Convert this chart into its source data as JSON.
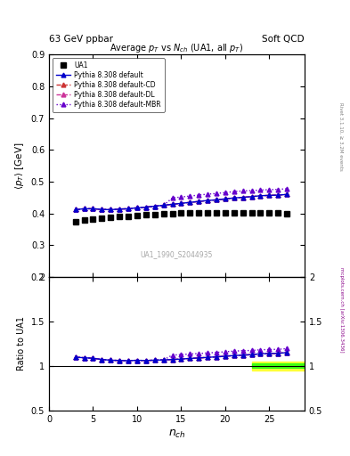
{
  "title_top": "63 GeV ppbar",
  "title_top_right": "Soft QCD",
  "plot_title": "Average $p_T$ vs $N_{ch}$ (UA1, all $p_T$)",
  "xlabel": "$n_{ch}$",
  "ylabel_main": "$\\langle p_T \\rangle$ [GeV]",
  "ylabel_ratio": "Ratio to UA1",
  "watermark": "UA1_1990_S2044935",
  "right_label_top": "Rivet 3.1.10, ≥ 3.2M events",
  "right_label_bottom": "mcplots.cern.ch [arXiv:1306.3436]",
  "ua1_x": [
    3,
    4,
    5,
    6,
    7,
    8,
    9,
    10,
    11,
    12,
    13,
    14,
    15,
    16,
    17,
    18,
    19,
    20,
    21,
    22,
    23,
    24,
    25,
    26,
    27
  ],
  "ua1_y": [
    0.375,
    0.38,
    0.382,
    0.385,
    0.387,
    0.39,
    0.392,
    0.393,
    0.396,
    0.397,
    0.399,
    0.4,
    0.401,
    0.401,
    0.402,
    0.402,
    0.402,
    0.402,
    0.402,
    0.402,
    0.402,
    0.401,
    0.401,
    0.401,
    0.4
  ],
  "pythia_x": [
    3,
    4,
    5,
    6,
    7,
    8,
    9,
    10,
    11,
    12,
    13,
    14,
    15,
    16,
    17,
    18,
    19,
    20,
    21,
    22,
    23,
    24,
    25,
    26,
    27
  ],
  "pythia_default_y": [
    0.412,
    0.415,
    0.415,
    0.413,
    0.412,
    0.414,
    0.415,
    0.418,
    0.42,
    0.423,
    0.426,
    0.429,
    0.432,
    0.435,
    0.438,
    0.441,
    0.443,
    0.446,
    0.449,
    0.451,
    0.453,
    0.456,
    0.457,
    0.458,
    0.46
  ],
  "pythia_cd_y": [
    0.412,
    0.415,
    0.415,
    0.413,
    0.412,
    0.414,
    0.415,
    0.418,
    0.42,
    0.423,
    0.426,
    0.429,
    0.432,
    0.435,
    0.438,
    0.441,
    0.443,
    0.446,
    0.449,
    0.451,
    0.453,
    0.456,
    0.457,
    0.458,
    0.46
  ],
  "pythia_dl_y": [
    0.412,
    0.415,
    0.415,
    0.413,
    0.412,
    0.414,
    0.415,
    0.418,
    0.42,
    0.423,
    0.426,
    0.429,
    0.432,
    0.435,
    0.438,
    0.441,
    0.443,
    0.446,
    0.449,
    0.451,
    0.453,
    0.456,
    0.457,
    0.458,
    0.46
  ],
  "pythia_mbr_y": [
    0.412,
    0.415,
    0.415,
    0.413,
    0.412,
    0.414,
    0.415,
    0.418,
    0.42,
    0.423,
    0.426,
    0.449,
    0.452,
    0.455,
    0.458,
    0.461,
    0.463,
    0.466,
    0.469,
    0.471,
    0.472,
    0.474,
    0.475,
    0.476,
    0.478
  ],
  "color_default": "#0000cc",
  "color_cd": "#cc3333",
  "color_dl": "#cc3399",
  "color_mbr": "#6600cc",
  "ylim_main": [
    0.2,
    0.9
  ],
  "ylim_ratio": [
    0.5,
    2.0
  ],
  "xlim": [
    0,
    29
  ],
  "yticks_main": [
    0.2,
    0.3,
    0.4,
    0.5,
    0.6,
    0.7,
    0.8,
    0.9
  ],
  "yticks_ratio": [
    0.5,
    1.0,
    1.5,
    2.0
  ]
}
